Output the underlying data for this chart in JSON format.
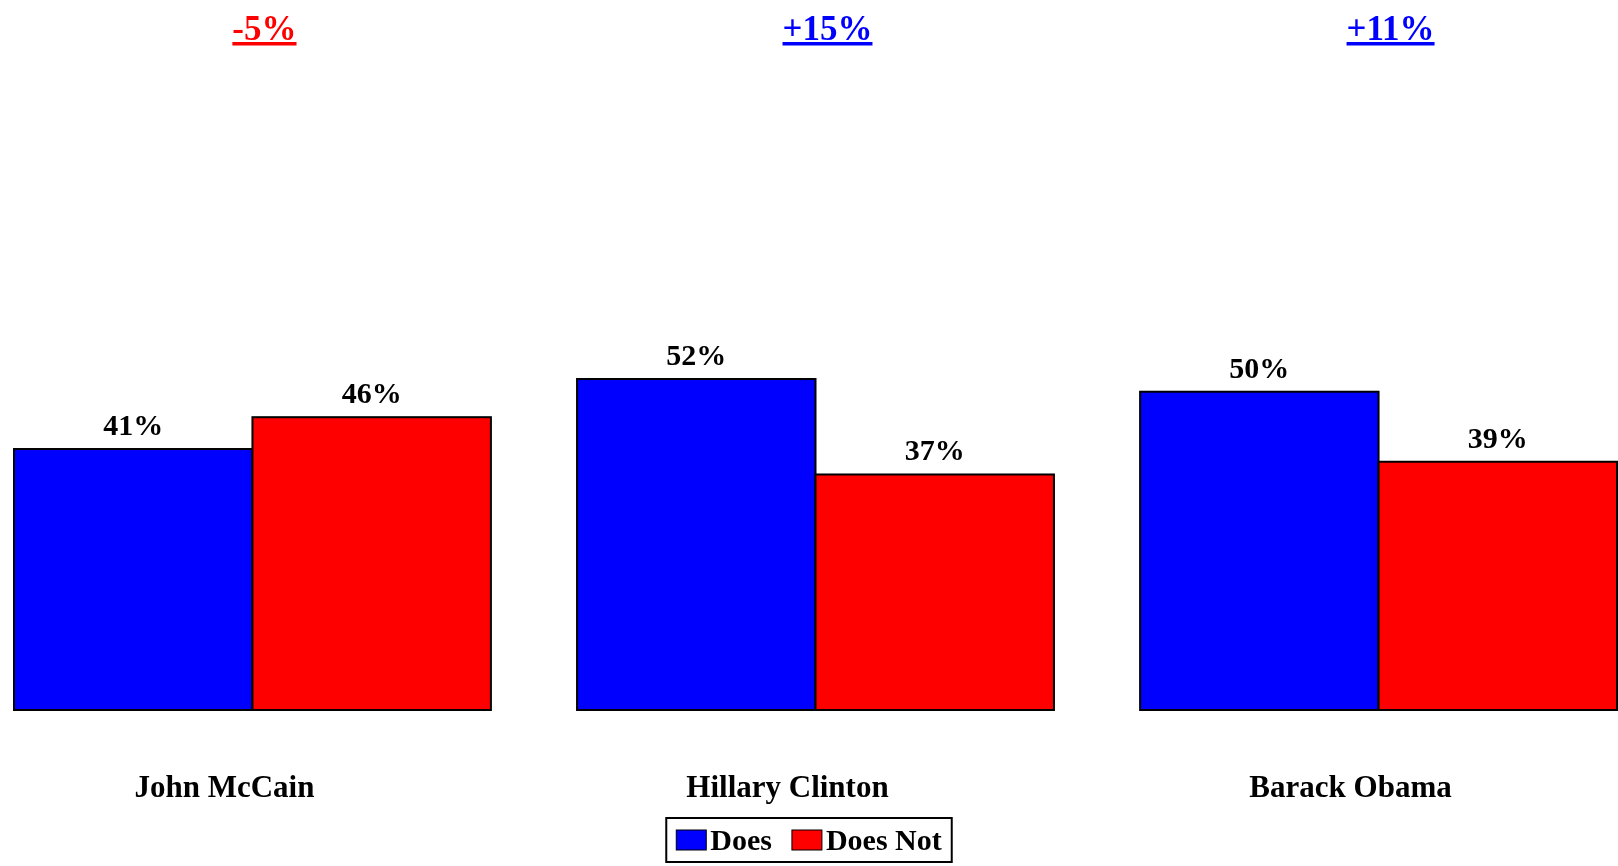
{
  "chart_data": {
    "type": "bar",
    "categories": [
      "John McCain",
      "Hillary Clinton",
      "Barack Obama"
    ],
    "series": [
      {
        "name": "Does",
        "color": "#0000ff",
        "values": [
          41,
          52,
          50
        ],
        "value_labels": [
          "41%",
          "52%",
          "50%"
        ]
      },
      {
        "name": "Does Not",
        "color": "#ff0000",
        "values": [
          46,
          37,
          39
        ],
        "value_labels": [
          "46%",
          "37%",
          "39%"
        ]
      }
    ],
    "legend": "bottom",
    "annotations": [
      "-5%",
      "+15%",
      "+11%"
    ]
  }
}
